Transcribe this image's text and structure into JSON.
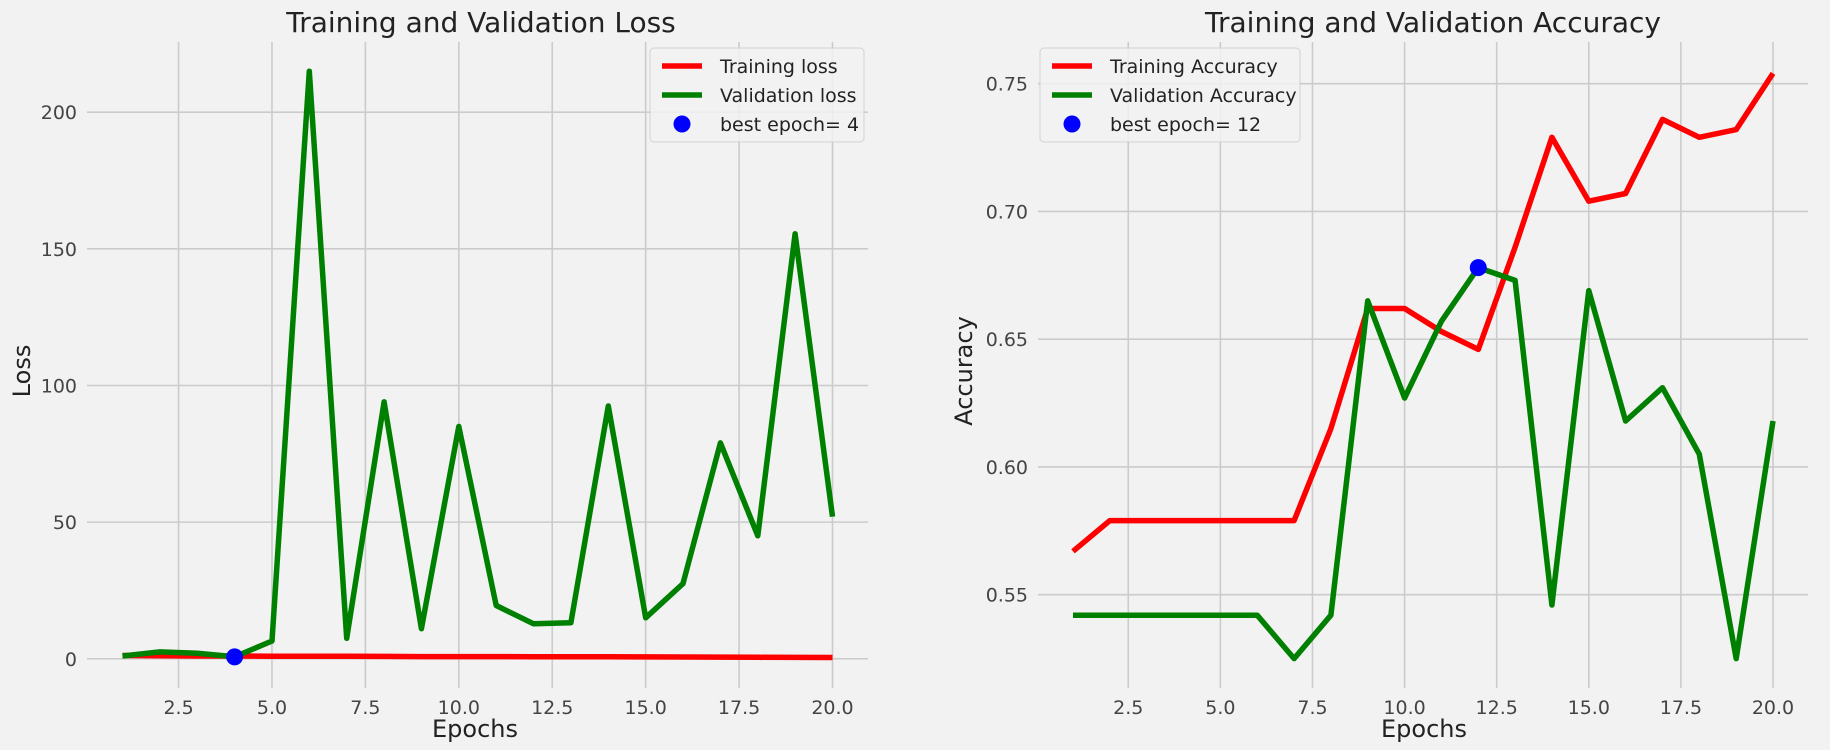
{
  "chart_data": [
    {
      "type": "line",
      "title": "Training and Validation Loss",
      "xlabel": "Epochs",
      "ylabel": "Loss",
      "xlim": [
        0.05,
        20.95
      ],
      "ylim": [
        -10.7,
        225.7
      ],
      "xticks": [
        2.5,
        5.0,
        7.5,
        10.0,
        12.5,
        15.0,
        17.5,
        20.0
      ],
      "xtick_labels": [
        "2.5",
        "5.0",
        "7.5",
        "10.0",
        "12.5",
        "15.0",
        "17.5",
        "20.0"
      ],
      "yticks": [
        0,
        50,
        100,
        150,
        200
      ],
      "ytick_labels": [
        "0",
        "50",
        "100",
        "150",
        "200"
      ],
      "grid": true,
      "legend_position": "top-right",
      "x": [
        1,
        2,
        3,
        4,
        5,
        6,
        7,
        8,
        9,
        10,
        11,
        12,
        13,
        14,
        15,
        16,
        17,
        18,
        19,
        20
      ],
      "series": [
        {
          "name": "Training loss",
          "color": "#ff0000",
          "values": [
            1.2,
            1.1,
            1.0,
            1.0,
            0.95,
            0.9,
            0.9,
            0.85,
            0.8,
            0.8,
            0.78,
            0.76,
            0.74,
            0.7,
            0.68,
            0.65,
            0.6,
            0.55,
            0.5,
            0.45
          ]
        },
        {
          "name": "Validation loss",
          "color": "#008000",
          "values": [
            1.0,
            2.5,
            2.0,
            0.7,
            6.5,
            215.0,
            7.5,
            94.0,
            11.0,
            85.0,
            19.5,
            12.8,
            13.2,
            92.5,
            15.0,
            27.5,
            79.0,
            45.0,
            155.5,
            52.0
          ]
        }
      ],
      "best_point": {
        "label": "best epoch= 4",
        "x": 4,
        "y": 0.7,
        "color": "#0000ff"
      }
    },
    {
      "type": "line",
      "title": "Training and Validation Accuracy",
      "xlabel": "Epochs",
      "ylabel": "Accuracy",
      "xlim": [
        0.05,
        20.95
      ],
      "ylim": [
        0.5135,
        0.7663
      ],
      "xticks": [
        2.5,
        5.0,
        7.5,
        10.0,
        12.5,
        15.0,
        17.5,
        20.0
      ],
      "xtick_labels": [
        "2.5",
        "5.0",
        "7.5",
        "10.0",
        "12.5",
        "15.0",
        "17.5",
        "20.0"
      ],
      "yticks": [
        0.55,
        0.6,
        0.65,
        0.7,
        0.75
      ],
      "ytick_labels": [
        "0.55",
        "0.60",
        "0.65",
        "0.70",
        "0.75"
      ],
      "grid": true,
      "legend_position": "top-left",
      "x": [
        1,
        2,
        3,
        4,
        5,
        6,
        7,
        8,
        9,
        10,
        11,
        12,
        13,
        14,
        15,
        16,
        17,
        18,
        19,
        20
      ],
      "series": [
        {
          "name": "Training Accuracy",
          "color": "#ff0000",
          "values": [
            0.567,
            0.579,
            0.579,
            0.579,
            0.579,
            0.579,
            0.579,
            0.615,
            0.662,
            0.662,
            0.653,
            0.646,
            0.686,
            0.729,
            0.704,
            0.707,
            0.736,
            0.729,
            0.732,
            0.754
          ]
        },
        {
          "name": "Validation Accuracy",
          "color": "#008000",
          "values": [
            0.542,
            0.542,
            0.542,
            0.542,
            0.542,
            0.542,
            0.525,
            0.542,
            0.665,
            0.627,
            0.657,
            0.678,
            0.673,
            0.546,
            0.669,
            0.618,
            0.631,
            0.605,
            0.525,
            0.618
          ]
        }
      ],
      "best_point": {
        "label": "best epoch= 12",
        "x": 12,
        "y": 0.678,
        "color": "#0000ff"
      }
    }
  ]
}
